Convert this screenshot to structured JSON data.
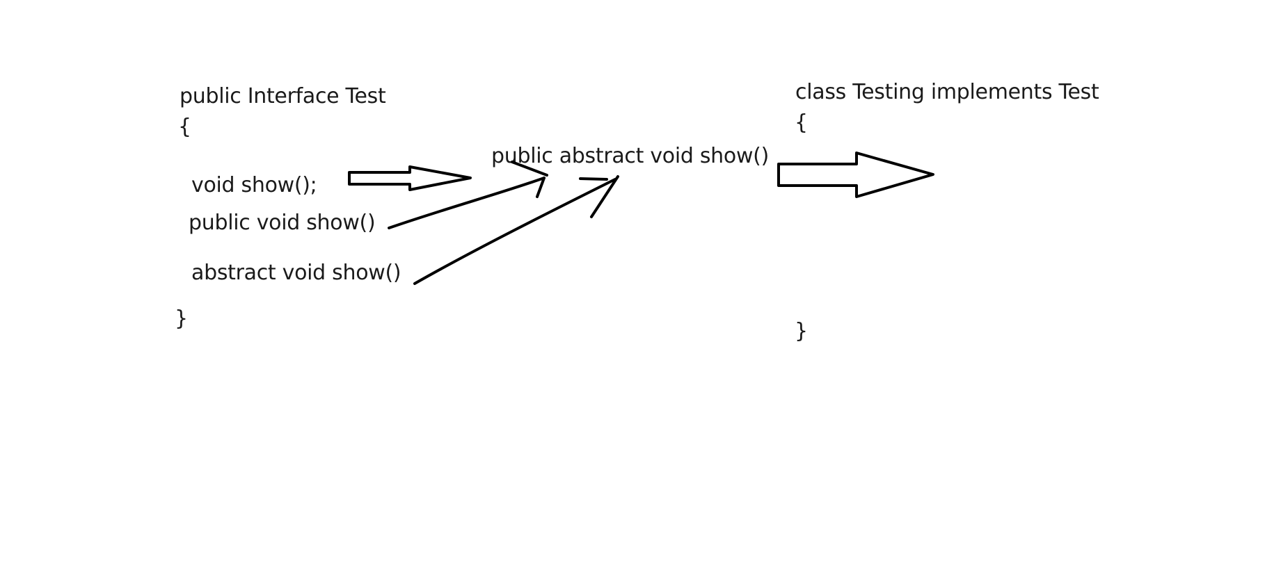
{
  "interface_block": {
    "header": "public Interface Test",
    "open_brace": "{",
    "method_1": "void show();",
    "method_2": "public void show()",
    "method_3": "abstract void show()",
    "close_brace": "}"
  },
  "equivalent": {
    "text": "public abstract void show()"
  },
  "class_block": {
    "header": "class Testing implements Test",
    "open_brace": "{",
    "close_brace": "}"
  },
  "colors": {
    "ink": "#000000",
    "text": "#1a1a1a",
    "background": "#ffffff"
  }
}
